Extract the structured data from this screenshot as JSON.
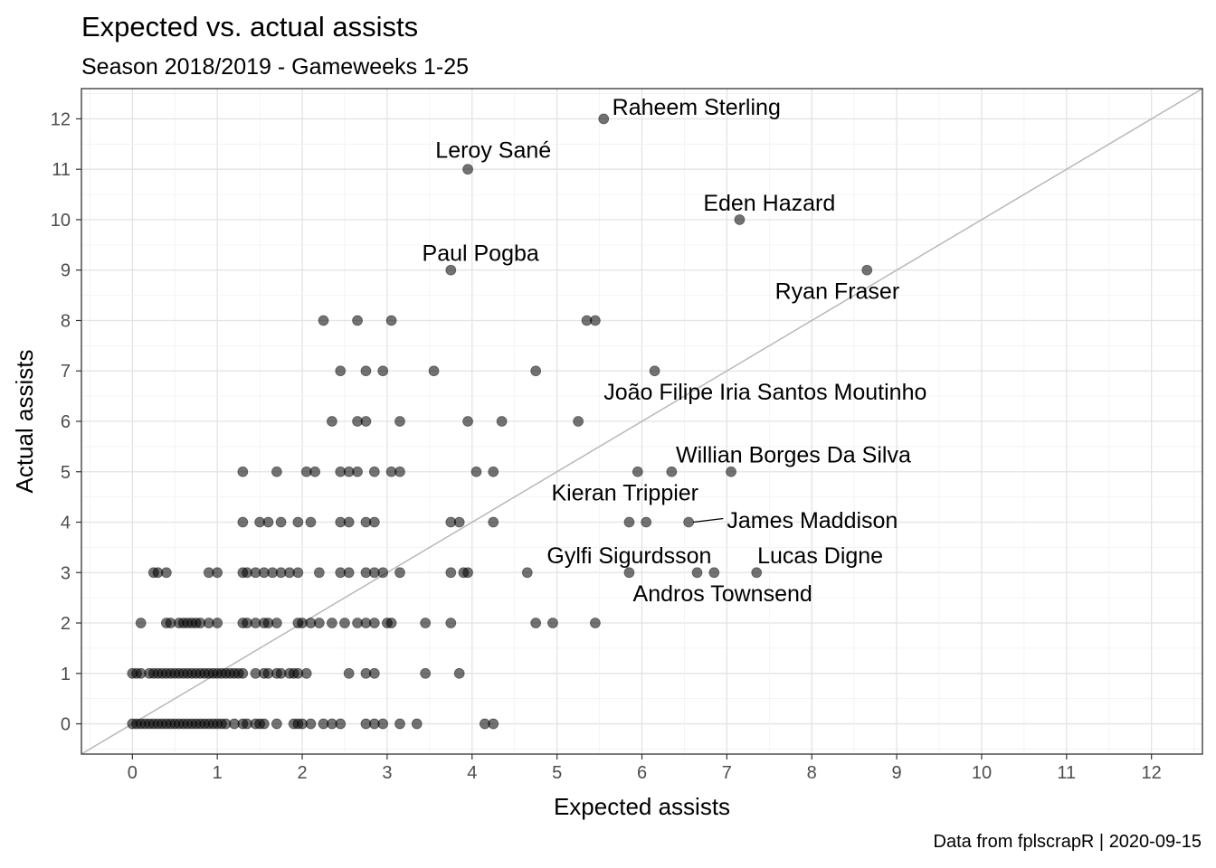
{
  "chart_data": {
    "type": "scatter",
    "title": "Expected vs. actual assists",
    "subtitle": "Season 2018/2019 - Gameweeks 1-25",
    "caption": "Data from fplscrapR | 2020-09-15",
    "xlabel": "Expected assists",
    "ylabel": "Actual assists",
    "xlim": [
      -0.6,
      12.6
    ],
    "ylim": [
      -0.6,
      12.6
    ],
    "xticks": [
      "0",
      "1",
      "2",
      "3",
      "4",
      "5",
      "6",
      "7",
      "8",
      "9",
      "10",
      "11",
      "12"
    ],
    "yticks": [
      "0",
      "1",
      "2",
      "3",
      "4",
      "5",
      "6",
      "7",
      "8",
      "9",
      "10",
      "11",
      "12"
    ],
    "grid": true,
    "reference_line": "y = x",
    "point_color": "#000000",
    "point_opacity": 0.55,
    "points": [
      [
        0.0,
        0
      ],
      [
        0.05,
        0
      ],
      [
        0.1,
        0
      ],
      [
        0.15,
        0
      ],
      [
        0.2,
        0
      ],
      [
        0.25,
        0
      ],
      [
        0.3,
        0
      ],
      [
        0.35,
        0
      ],
      [
        0.4,
        0
      ],
      [
        0.45,
        0
      ],
      [
        0.5,
        0
      ],
      [
        0.55,
        0
      ],
      [
        0.6,
        0
      ],
      [
        0.65,
        0
      ],
      [
        0.7,
        0
      ],
      [
        0.75,
        0
      ],
      [
        0.8,
        0
      ],
      [
        0.85,
        0
      ],
      [
        0.9,
        0
      ],
      [
        0.95,
        0
      ],
      [
        1.0,
        0
      ],
      [
        1.05,
        0
      ],
      [
        1.1,
        0
      ],
      [
        1.2,
        0
      ],
      [
        1.3,
        0
      ],
      [
        1.35,
        0
      ],
      [
        1.45,
        0
      ],
      [
        1.5,
        0
      ],
      [
        1.55,
        0
      ],
      [
        1.7,
        0
      ],
      [
        1.9,
        0
      ],
      [
        1.95,
        0
      ],
      [
        2.0,
        0
      ],
      [
        2.1,
        0
      ],
      [
        2.25,
        0
      ],
      [
        2.35,
        0
      ],
      [
        2.45,
        0
      ],
      [
        2.75,
        0
      ],
      [
        2.85,
        0
      ],
      [
        2.95,
        0
      ],
      [
        3.15,
        0
      ],
      [
        3.35,
        0
      ],
      [
        4.15,
        0
      ],
      [
        4.25,
        0
      ],
      [
        0.0,
        1
      ],
      [
        0.05,
        1
      ],
      [
        0.1,
        1
      ],
      [
        0.2,
        1
      ],
      [
        0.25,
        1
      ],
      [
        0.3,
        1
      ],
      [
        0.35,
        1
      ],
      [
        0.4,
        1
      ],
      [
        0.45,
        1
      ],
      [
        0.5,
        1
      ],
      [
        0.55,
        1
      ],
      [
        0.6,
        1
      ],
      [
        0.65,
        1
      ],
      [
        0.7,
        1
      ],
      [
        0.75,
        1
      ],
      [
        0.8,
        1
      ],
      [
        0.85,
        1
      ],
      [
        0.9,
        1
      ],
      [
        0.95,
        1
      ],
      [
        1.0,
        1
      ],
      [
        1.05,
        1
      ],
      [
        1.1,
        1
      ],
      [
        1.15,
        1
      ],
      [
        1.2,
        1
      ],
      [
        1.25,
        1
      ],
      [
        1.3,
        1
      ],
      [
        1.45,
        1
      ],
      [
        1.55,
        1
      ],
      [
        1.6,
        1
      ],
      [
        1.7,
        1
      ],
      [
        1.75,
        1
      ],
      [
        1.85,
        1
      ],
      [
        1.9,
        1
      ],
      [
        1.95,
        1
      ],
      [
        2.05,
        1
      ],
      [
        2.55,
        1
      ],
      [
        2.75,
        1
      ],
      [
        2.85,
        1
      ],
      [
        3.45,
        1
      ],
      [
        3.85,
        1
      ],
      [
        0.1,
        2
      ],
      [
        0.4,
        2
      ],
      [
        0.45,
        2
      ],
      [
        0.55,
        2
      ],
      [
        0.6,
        2
      ],
      [
        0.65,
        2
      ],
      [
        0.7,
        2
      ],
      [
        0.75,
        2
      ],
      [
        0.8,
        2
      ],
      [
        0.9,
        2
      ],
      [
        1.0,
        2
      ],
      [
        1.3,
        2
      ],
      [
        1.35,
        2
      ],
      [
        1.45,
        2
      ],
      [
        1.55,
        2
      ],
      [
        1.6,
        2
      ],
      [
        1.7,
        2
      ],
      [
        1.95,
        2
      ],
      [
        2.0,
        2
      ],
      [
        2.1,
        2
      ],
      [
        2.2,
        2
      ],
      [
        2.35,
        2
      ],
      [
        2.5,
        2
      ],
      [
        2.65,
        2
      ],
      [
        2.75,
        2
      ],
      [
        2.85,
        2
      ],
      [
        3.0,
        2
      ],
      [
        3.05,
        2
      ],
      [
        3.45,
        2
      ],
      [
        3.75,
        2
      ],
      [
        4.75,
        2
      ],
      [
        4.95,
        2
      ],
      [
        5.45,
        2
      ],
      [
        0.25,
        3
      ],
      [
        0.3,
        3
      ],
      [
        0.4,
        3
      ],
      [
        0.9,
        3
      ],
      [
        1.0,
        3
      ],
      [
        1.3,
        3
      ],
      [
        1.35,
        3
      ],
      [
        1.45,
        3
      ],
      [
        1.55,
        3
      ],
      [
        1.65,
        3
      ],
      [
        1.75,
        3
      ],
      [
        1.85,
        3
      ],
      [
        1.95,
        3
      ],
      [
        2.2,
        3
      ],
      [
        2.45,
        3
      ],
      [
        2.55,
        3
      ],
      [
        2.75,
        3
      ],
      [
        2.85,
        3
      ],
      [
        2.95,
        3
      ],
      [
        3.15,
        3
      ],
      [
        3.75,
        3
      ],
      [
        3.9,
        3
      ],
      [
        3.95,
        3
      ],
      [
        4.65,
        3
      ],
      [
        5.85,
        3
      ],
      [
        6.65,
        3
      ],
      [
        6.85,
        3
      ],
      [
        7.35,
        3
      ],
      [
        1.3,
        4
      ],
      [
        1.5,
        4
      ],
      [
        1.6,
        4
      ],
      [
        1.75,
        4
      ],
      [
        1.95,
        4
      ],
      [
        2.1,
        4
      ],
      [
        2.45,
        4
      ],
      [
        2.55,
        4
      ],
      [
        2.75,
        4
      ],
      [
        2.85,
        4
      ],
      [
        3.75,
        4
      ],
      [
        3.85,
        4
      ],
      [
        4.25,
        4
      ],
      [
        5.85,
        4
      ],
      [
        6.05,
        4
      ],
      [
        6.55,
        4
      ],
      [
        1.3,
        5
      ],
      [
        1.7,
        5
      ],
      [
        2.05,
        5
      ],
      [
        2.15,
        5
      ],
      [
        2.45,
        5
      ],
      [
        2.55,
        5
      ],
      [
        2.65,
        5
      ],
      [
        2.85,
        5
      ],
      [
        3.05,
        5
      ],
      [
        3.15,
        5
      ],
      [
        4.05,
        5
      ],
      [
        4.25,
        5
      ],
      [
        5.95,
        5
      ],
      [
        6.35,
        5
      ],
      [
        7.05,
        5
      ],
      [
        2.35,
        6
      ],
      [
        2.65,
        6
      ],
      [
        2.75,
        6
      ],
      [
        3.15,
        6
      ],
      [
        3.95,
        6
      ],
      [
        4.35,
        6
      ],
      [
        5.25,
        6
      ],
      [
        2.45,
        7
      ],
      [
        2.75,
        7
      ],
      [
        2.95,
        7
      ],
      [
        3.55,
        7
      ],
      [
        4.75,
        7
      ],
      [
        6.15,
        7
      ],
      [
        2.25,
        8
      ],
      [
        2.65,
        8
      ],
      [
        3.05,
        8
      ],
      [
        5.35,
        8
      ],
      [
        5.45,
        8
      ],
      [
        3.75,
        9
      ],
      [
        8.65,
        9
      ],
      [
        7.15,
        10
      ],
      [
        3.95,
        11
      ],
      [
        5.55,
        12
      ]
    ],
    "labels": [
      {
        "text": "Raheem Sterling",
        "x": 5.55,
        "y": 12,
        "anchor": "start",
        "dx": 0.1,
        "dy": 0.2
      },
      {
        "text": "Leroy Sané",
        "x": 3.95,
        "y": 11,
        "anchor": "middle",
        "dx": 0.3,
        "dy": 0.35
      },
      {
        "text": "Eden Hazard",
        "x": 7.15,
        "y": 10,
        "anchor": "middle",
        "dx": 0.35,
        "dy": 0.3
      },
      {
        "text": "Paul Pogba",
        "x": 3.75,
        "y": 9,
        "anchor": "middle",
        "dx": 0.35,
        "dy": 0.3
      },
      {
        "text": "Ryan Fraser",
        "x": 8.65,
        "y": 9,
        "anchor": "middle",
        "dx": -0.35,
        "dy": -0.45
      },
      {
        "text": "João Filipe Iria Santos Moutinho",
        "x": 6.15,
        "y": 7,
        "anchor": "start",
        "dx": -0.6,
        "dy": -0.45
      },
      {
        "text": "Willian Borges Da Silva",
        "x": 6.35,
        "y": 5,
        "anchor": "start",
        "dx": 0.05,
        "dy": 0.3
      },
      {
        "text": "Kieran Trippier",
        "x": 5.95,
        "y": 5,
        "anchor": "middle",
        "dx": -0.15,
        "dy": -0.45
      },
      {
        "text": "James Maddison",
        "x": 6.55,
        "y": 4,
        "anchor": "start",
        "dx": 0.45,
        "dy": 0.0
      },
      {
        "text": "Gylfi Sigurdsson",
        "x": 5.85,
        "y": 3,
        "anchor": "middle",
        "dx": 0.0,
        "dy": 0.3
      },
      {
        "text": "Lucas Digne",
        "x": 7.35,
        "y": 3,
        "anchor": "middle",
        "dx": 0.75,
        "dy": 0.3
      },
      {
        "text": "Andros Townsend",
        "x": 6.65,
        "y": 3,
        "anchor": "middle",
        "dx": 0.3,
        "dy": -0.45
      }
    ]
  }
}
